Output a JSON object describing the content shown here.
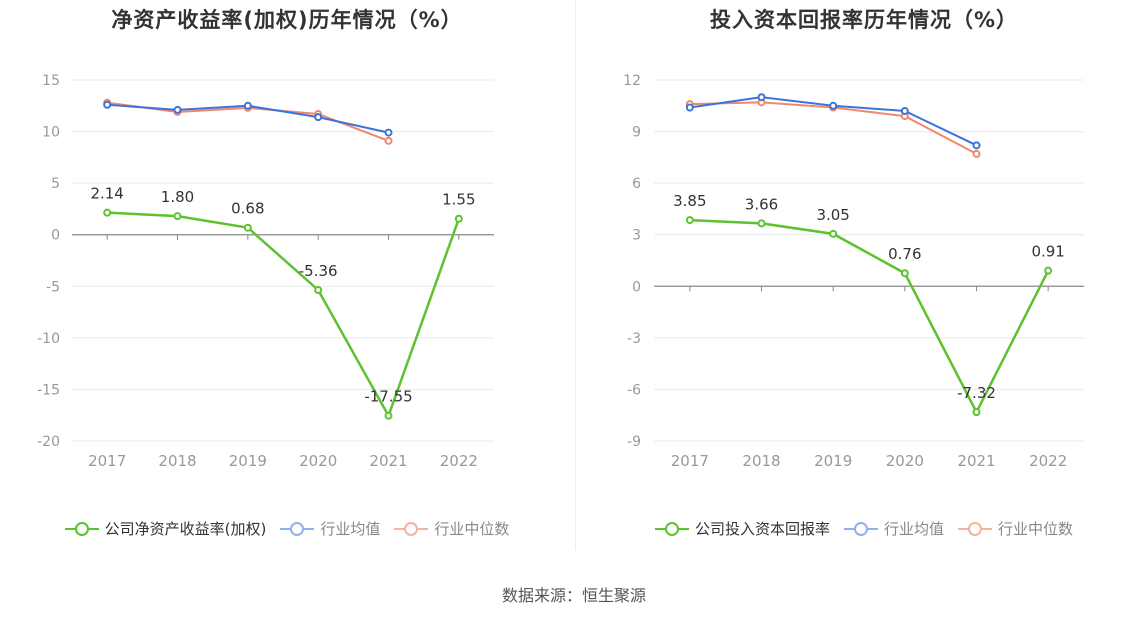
{
  "colors": {
    "company": "#5cc22e",
    "avg": "#3b73db",
    "median": "#f0886a",
    "avg_legend": "#8fb1ee",
    "median_legend": "#f5b29e"
  },
  "chart_data": [
    {
      "type": "line",
      "title": "净资产收益率(加权)历年情况（%）",
      "categories": [
        "2017",
        "2018",
        "2019",
        "2020",
        "2021",
        "2022"
      ],
      "ylim": [
        -20,
        15
      ],
      "yticks": [
        "15",
        "10",
        "5",
        "0",
        "-5",
        "-10",
        "-15",
        "-20"
      ],
      "grid": true,
      "legend": "bottom",
      "series": [
        {
          "name": "公司净资产收益率(加权)",
          "values": [
            2.14,
            1.8,
            0.68,
            -5.36,
            -17.55,
            1.55
          ],
          "labels": [
            "2.14",
            "1.80",
            "0.68",
            "-5.36",
            "-17.55",
            "1.55"
          ]
        },
        {
          "name": "行业均值",
          "values": [
            12.6,
            12.1,
            12.5,
            11.4,
            9.9,
            null
          ]
        },
        {
          "name": "行业中位数",
          "values": [
            12.8,
            11.9,
            12.3,
            11.7,
            9.1,
            null
          ]
        }
      ]
    },
    {
      "type": "line",
      "title": "投入资本回报率历年情况（%）",
      "categories": [
        "2017",
        "2018",
        "2019",
        "2020",
        "2021",
        "2022"
      ],
      "ylim": [
        -9,
        12
      ],
      "yticks": [
        "12",
        "9",
        "6",
        "3",
        "0",
        "-3",
        "-6",
        "-9"
      ],
      "grid": true,
      "legend": "bottom",
      "series": [
        {
          "name": "公司投入资本回报率",
          "values": [
            3.85,
            3.66,
            3.05,
            0.76,
            -7.32,
            0.91
          ],
          "labels": [
            "3.85",
            "3.66",
            "3.05",
            "0.76",
            "-7.32",
            "0.91"
          ]
        },
        {
          "name": "行业均值",
          "values": [
            10.4,
            11.0,
            10.5,
            10.2,
            8.2,
            null
          ]
        },
        {
          "name": "行业中位数",
          "values": [
            10.6,
            10.7,
            10.4,
            9.9,
            7.7,
            null
          ]
        }
      ]
    }
  ],
  "source": "数据来源：恒生聚源"
}
